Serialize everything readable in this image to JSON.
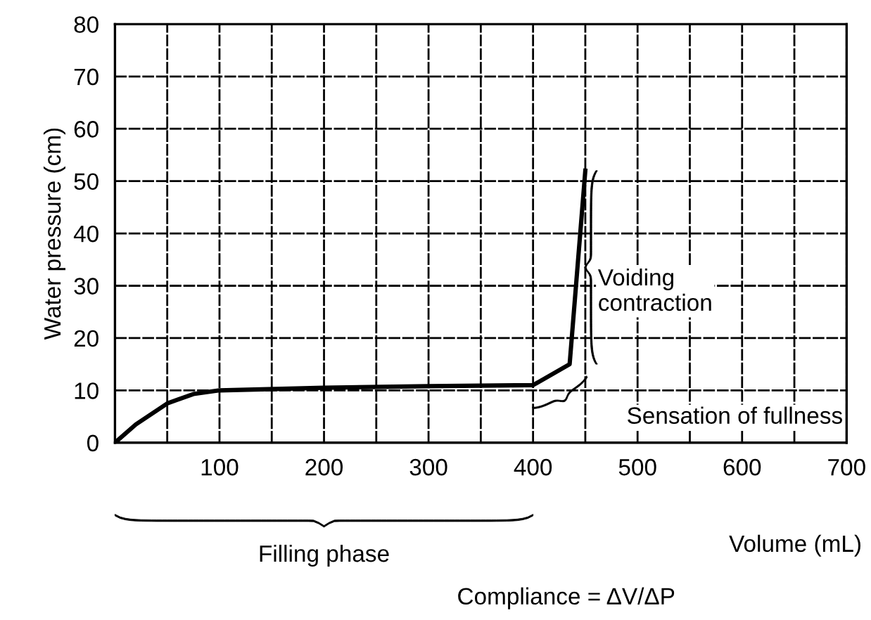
{
  "chart_data": {
    "type": "line",
    "xlabel": "Volume (mL)",
    "ylabel": "Water pressure (cm)",
    "x": [
      0,
      20,
      50,
      75,
      100,
      200,
      300,
      400,
      435,
      450
    ],
    "series": [
      {
        "color": "#000000",
        "values": [
          0,
          3.5,
          7.5,
          9.3,
          10,
          10.5,
          10.8,
          11,
          15,
          52
        ]
      }
    ],
    "xlim": [
      0,
      700
    ],
    "ylim": [
      0,
      80
    ],
    "xticks": [
      {
        "value": 0,
        "label": null
      },
      {
        "value": 50,
        "label": null
      },
      100,
      {
        "value": 150,
        "label": null
      },
      200,
      {
        "value": 250,
        "label": null
      },
      300,
      {
        "value": 350,
        "label": null
      },
      400,
      {
        "value": 450,
        "label": null
      },
      500,
      {
        "value": 550,
        "label": null
      },
      600,
      {
        "value": 650,
        "label": null
      },
      700
    ],
    "yticks": [
      0,
      10,
      20,
      30,
      40,
      50,
      60,
      70,
      80
    ],
    "grid": true,
    "marker": "none",
    "line_style": "solid",
    "legend": false,
    "annotations": [
      "Voiding\ncontraction",
      "Sensation of fullness",
      "Filling phase",
      "Compliance = ΔV/ΔP"
    ]
  }
}
